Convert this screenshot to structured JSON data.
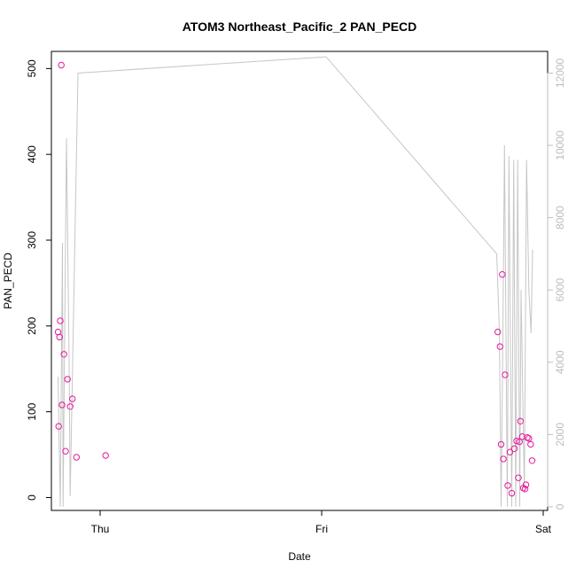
{
  "chart_data": {
    "type": "scatter",
    "title": "ATOM3 Northeast_Pacific_2 PAN_PECD",
    "xlabel": "Date",
    "ylabel": "PAN_PECD",
    "x_tick_labels": [
      "Thu",
      "Fri",
      "Sat"
    ],
    "x_ticks_days": [
      1.0,
      2.0,
      3.0
    ],
    "xlim_days": [
      0.78,
      3.02
    ],
    "ylim": [
      -15,
      520
    ],
    "y_ticks": [
      0,
      100,
      200,
      300,
      400,
      500
    ],
    "y_right_lim": [
      -100,
      12600
    ],
    "y_right_ticks": [
      0,
      2000,
      4000,
      6000,
      8000,
      10000,
      12000
    ],
    "series": [
      {
        "kind": "points",
        "color": "#e6199a",
        "x_days": [
          0.81,
          0.813,
          0.817,
          0.82,
          0.828,
          0.837,
          0.844,
          0.853,
          0.865,
          0.875,
          0.893,
          1.025,
          2.795,
          2.805,
          2.81,
          2.815,
          2.82,
          2.828,
          2.84,
          2.85,
          2.858,
          2.87,
          2.88,
          2.888,
          2.893,
          2.897,
          2.905,
          2.91,
          2.918,
          2.922,
          2.928,
          2.935,
          2.943,
          2.95
        ],
        "y": [
          193,
          83,
          187,
          206,
          108,
          167,
          54,
          138,
          106,
          115,
          47,
          49,
          193,
          176,
          62,
          260,
          45,
          143,
          14,
          53,
          5,
          57,
          66,
          23,
          65,
          89,
          71,
          11,
          10,
          15,
          70,
          69,
          62,
          43
        ]
      },
      {
        "kind": "points",
        "color": "#e6199a",
        "x_days": [
          0.825
        ],
        "y": [
          504
        ]
      },
      {
        "kind": "line",
        "color": "#c6c6c6",
        "x_days": [
          0.81,
          0.82,
          0.83,
          0.833,
          0.848,
          0.86,
          0.865,
          0.9,
          2.02,
          2.79,
          2.802,
          2.81,
          2.817,
          2.825,
          2.838,
          2.845,
          2.858,
          2.867,
          2.876,
          2.885,
          2.894,
          2.9,
          2.915,
          2.925,
          2.935,
          2.945,
          2.952,
          2.955
        ],
        "y_right": [
          3600,
          0,
          7300,
          0,
          10200,
          4000,
          300,
          12000,
          12450,
          7000,
          4900,
          0,
          4300,
          10000,
          0,
          9700,
          0,
          9600,
          0,
          9600,
          0,
          6000,
          400,
          9600,
          6000,
          4800,
          7100,
          7100
        ]
      }
    ],
    "grid": false,
    "legend": "none"
  }
}
